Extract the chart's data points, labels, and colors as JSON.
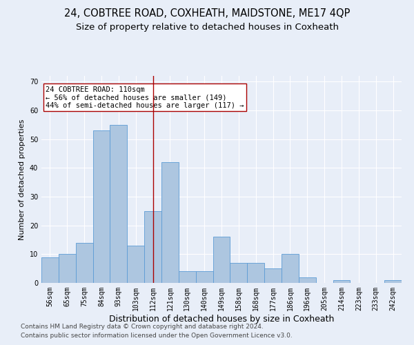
{
  "title1": "24, COBTREE ROAD, COXHEATH, MAIDSTONE, ME17 4QP",
  "title2": "Size of property relative to detached houses in Coxheath",
  "xlabel": "Distribution of detached houses by size in Coxheath",
  "ylabel": "Number of detached properties",
  "categories": [
    "56sqm",
    "65sqm",
    "75sqm",
    "84sqm",
    "93sqm",
    "103sqm",
    "112sqm",
    "121sqm",
    "130sqm",
    "140sqm",
    "149sqm",
    "158sqm",
    "168sqm",
    "177sqm",
    "186sqm",
    "196sqm",
    "205sqm",
    "214sqm",
    "223sqm",
    "233sqm",
    "242sqm"
  ],
  "values": [
    9,
    10,
    14,
    53,
    55,
    13,
    25,
    42,
    4,
    4,
    16,
    7,
    7,
    5,
    10,
    2,
    0,
    1,
    0,
    0,
    1
  ],
  "bar_color": "#adc6e0",
  "bar_edge_color": "#5b9bd5",
  "red_line_index": 6,
  "annotation_text": "24 COBTREE ROAD: 110sqm\n← 56% of detached houses are smaller (149)\n44% of semi-detached houses are larger (117) →",
  "annotation_box_color": "#ffffff",
  "annotation_box_edge_color": "#aa0000",
  "ylim": [
    0,
    72
  ],
  "yticks": [
    0,
    10,
    20,
    30,
    40,
    50,
    60,
    70
  ],
  "footer1": "Contains HM Land Registry data © Crown copyright and database right 2024.",
  "footer2": "Contains public sector information licensed under the Open Government Licence v3.0.",
  "bg_color": "#e8eef8",
  "plot_bg_color": "#e8eef8",
  "title1_fontsize": 10.5,
  "title2_fontsize": 9.5,
  "xlabel_fontsize": 9,
  "ylabel_fontsize": 8,
  "tick_fontsize": 7,
  "footer_fontsize": 6.5,
  "annotation_fontsize": 7.5
}
